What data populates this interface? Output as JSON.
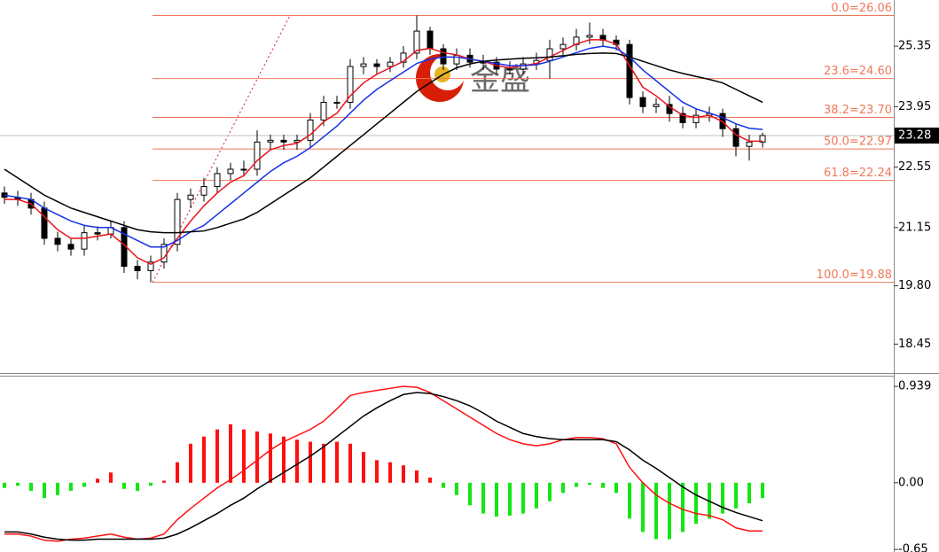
{
  "watermark": "金盛",
  "chart_data": [
    {
      "type": "candlestick",
      "open": [
        21.95,
        21.85,
        21.8,
        21.6,
        20.9,
        20.76,
        20.65,
        21.03,
        21.0,
        21.15,
        20.25,
        20.15,
        20.35,
        20.76,
        21.8,
        21.9,
        22.1,
        22.4,
        22.5,
        22.5,
        23.13,
        23.17,
        23.13,
        23.17,
        23.64,
        24.05,
        24.05,
        24.88,
        24.94,
        24.88,
        24.98,
        25.19,
        25.7,
        25.29,
        24.94,
        25.14,
        24.98,
        24.98,
        24.82,
        24.82,
        24.94,
        25.02,
        25.29,
        25.39,
        25.56,
        25.6,
        25.49,
        25.39,
        24.16,
        23.95,
        24.0,
        23.79,
        23.58,
        23.75,
        23.79,
        23.44,
        23.03,
        23.13
      ],
      "high": [
        22.1,
        22.0,
        21.95,
        21.75,
        21.05,
        20.9,
        21.2,
        21.18,
        21.3,
        21.3,
        20.4,
        20.5,
        20.9,
        21.95,
        22.05,
        22.3,
        22.55,
        22.65,
        22.7,
        23.4,
        23.3,
        23.3,
        23.3,
        23.8,
        24.2,
        24.2,
        25.05,
        25.1,
        25.05,
        25.1,
        25.35,
        26.06,
        25.8,
        25.4,
        25.3,
        25.3,
        25.15,
        25.1,
        25.0,
        25.1,
        25.2,
        25.5,
        25.55,
        25.75,
        25.9,
        25.75,
        25.6,
        25.5,
        24.3,
        24.15,
        24.2,
        23.95,
        23.9,
        23.95,
        23.9,
        23.55,
        23.3,
        23.35
      ],
      "low": [
        21.7,
        21.65,
        21.45,
        20.75,
        20.6,
        20.5,
        20.5,
        20.85,
        20.9,
        20.1,
        19.95,
        19.88,
        20.2,
        20.6,
        21.6,
        21.75,
        21.95,
        22.25,
        22.35,
        22.35,
        22.95,
        22.95,
        22.95,
        23.0,
        23.5,
        23.9,
        23.9,
        24.7,
        24.7,
        24.75,
        24.85,
        25.05,
        25.15,
        24.8,
        24.8,
        24.85,
        24.8,
        24.7,
        24.7,
        24.7,
        24.8,
        24.6,
        25.15,
        25.25,
        25.4,
        25.35,
        25.25,
        24.0,
        23.8,
        23.8,
        23.6,
        23.45,
        23.45,
        23.6,
        23.25,
        22.8,
        22.7,
        23.0
      ],
      "close": [
        21.85,
        21.8,
        21.6,
        20.9,
        20.76,
        20.65,
        21.03,
        21.0,
        21.15,
        20.25,
        20.15,
        20.35,
        20.76,
        21.8,
        21.9,
        22.1,
        22.4,
        22.5,
        22.5,
        23.13,
        23.17,
        23.13,
        23.17,
        23.64,
        24.05,
        24.05,
        24.88,
        24.94,
        24.88,
        24.98,
        25.19,
        25.7,
        25.29,
        24.94,
        25.14,
        24.98,
        24.98,
        24.82,
        24.82,
        24.94,
        25.02,
        25.29,
        25.39,
        25.56,
        25.6,
        25.49,
        25.39,
        24.16,
        23.95,
        24.0,
        23.79,
        23.58,
        23.75,
        23.79,
        23.44,
        23.03,
        23.13,
        23.28
      ],
      "moving_averages": [
        {
          "color": "#e8141e",
          "values": [
            21.8,
            21.8,
            21.7,
            21.4,
            21.1,
            20.9,
            20.9,
            20.95,
            21.0,
            20.75,
            20.45,
            20.3,
            20.45,
            20.9,
            21.3,
            21.65,
            21.95,
            22.2,
            22.35,
            22.7,
            22.95,
            23.05,
            23.1,
            23.3,
            23.6,
            23.8,
            24.2,
            24.5,
            24.7,
            24.85,
            25.0,
            25.25,
            25.3,
            25.2,
            25.15,
            25.05,
            25.0,
            24.9,
            24.85,
            24.9,
            24.95,
            25.1,
            25.25,
            25.4,
            25.5,
            25.5,
            25.4,
            24.9,
            24.4,
            24.2,
            23.95,
            23.75,
            23.7,
            23.75,
            23.6,
            23.3,
            23.15,
            23.15
          ]
        },
        {
          "color": "#1432e6",
          "values": [
            21.9,
            21.85,
            21.8,
            21.6,
            21.45,
            21.3,
            21.2,
            21.15,
            21.15,
            21.0,
            20.85,
            20.7,
            20.7,
            20.85,
            21.05,
            21.2,
            21.45,
            21.7,
            21.95,
            22.2,
            22.45,
            22.65,
            22.8,
            23.0,
            23.25,
            23.5,
            23.8,
            24.1,
            24.35,
            24.55,
            24.75,
            24.95,
            25.05,
            25.1,
            25.1,
            25.05,
            25.0,
            24.95,
            24.9,
            24.9,
            24.92,
            25.0,
            25.1,
            25.2,
            25.3,
            25.35,
            25.3,
            25.1,
            24.8,
            24.55,
            24.3,
            24.05,
            23.9,
            23.8,
            23.7,
            23.55,
            23.45,
            23.42
          ]
        },
        {
          "color": "#000000",
          "values": [
            22.5,
            22.3,
            22.1,
            21.9,
            21.75,
            21.6,
            21.5,
            21.4,
            21.3,
            21.2,
            21.1,
            21.05,
            21.03,
            21.03,
            21.05,
            21.07,
            21.15,
            21.25,
            21.35,
            21.5,
            21.7,
            21.9,
            22.1,
            22.3,
            22.55,
            22.8,
            23.05,
            23.3,
            23.55,
            23.8,
            24.05,
            24.3,
            24.5,
            24.7,
            24.85,
            24.94,
            25.0,
            25.03,
            25.05,
            25.07,
            25.08,
            25.1,
            25.13,
            25.16,
            25.18,
            25.19,
            25.18,
            25.1,
            25.0,
            24.9,
            24.8,
            24.72,
            24.65,
            24.58,
            24.5,
            24.35,
            24.2,
            24.05
          ]
        }
      ],
      "fib_levels": [
        {
          "value": 26.06,
          "label": "0.0=26.06"
        },
        {
          "value": 24.6,
          "label": "23.6=24.60"
        },
        {
          "value": 23.7,
          "label": "38.2=23.70"
        },
        {
          "value": 22.97,
          "label": "50.0=22.97"
        },
        {
          "value": 22.24,
          "label": "61.8=22.24"
        },
        {
          "value": 19.88,
          "label": "100.0=19.88"
        }
      ],
      "fib_color": "#f0785a",
      "last_price": 23.28,
      "ylim": [
        17.78,
        26.42
      ],
      "yticks": [
        25.35,
        23.95,
        22.55,
        21.15,
        {
          "value": 19.8,
          "label": "19.80"
        },
        18.45
      ]
    },
    {
      "type": "macd",
      "histogram": [
        -0.05,
        -0.03,
        -0.08,
        -0.15,
        -0.12,
        -0.08,
        -0.04,
        0.04,
        0.1,
        -0.06,
        -0.08,
        -0.03,
        0.02,
        0.2,
        0.38,
        0.45,
        0.52,
        0.57,
        0.52,
        0.5,
        0.48,
        0.45,
        0.42,
        0.4,
        0.38,
        0.4,
        0.38,
        0.3,
        0.22,
        0.2,
        0.17,
        0.12,
        0.05,
        -0.05,
        -0.12,
        -0.22,
        -0.3,
        -0.33,
        -0.32,
        -0.3,
        -0.25,
        -0.18,
        -0.1,
        -0.04,
        -0.02,
        -0.05,
        -0.1,
        -0.35,
        -0.48,
        -0.55,
        -0.55,
        -0.48,
        -0.4,
        -0.35,
        -0.3,
        -0.25,
        -0.2,
        -0.15
      ],
      "up_color": "#ff1010",
      "down_color": "#14e614",
      "lines": [
        {
          "color": "#ff1010",
          "values": [
            -0.5,
            -0.5,
            -0.52,
            -0.56,
            -0.57,
            -0.55,
            -0.54,
            -0.52,
            -0.5,
            -0.53,
            -0.55,
            -0.54,
            -0.5,
            -0.36,
            -0.25,
            -0.15,
            -0.05,
            0.03,
            0.12,
            0.22,
            0.32,
            0.4,
            0.46,
            0.52,
            0.6,
            0.72,
            0.85,
            0.88,
            0.9,
            0.92,
            0.94,
            0.93,
            0.88,
            0.8,
            0.72,
            0.64,
            0.56,
            0.48,
            0.42,
            0.38,
            0.36,
            0.38,
            0.42,
            0.44,
            0.44,
            0.43,
            0.38,
            0.15,
            0.0,
            -0.12,
            -0.2,
            -0.26,
            -0.3,
            -0.32,
            -0.36,
            -0.44,
            -0.47,
            -0.47
          ]
        },
        {
          "color": "#000000",
          "values": [
            -0.48,
            -0.48,
            -0.5,
            -0.53,
            -0.55,
            -0.56,
            -0.56,
            -0.55,
            -0.55,
            -0.55,
            -0.55,
            -0.55,
            -0.54,
            -0.5,
            -0.44,
            -0.37,
            -0.3,
            -0.22,
            -0.15,
            -0.06,
            0.02,
            0.1,
            0.18,
            0.26,
            0.35,
            0.45,
            0.55,
            0.65,
            0.73,
            0.8,
            0.86,
            0.88,
            0.87,
            0.84,
            0.8,
            0.75,
            0.68,
            0.6,
            0.54,
            0.48,
            0.45,
            0.43,
            0.42,
            0.42,
            0.42,
            0.42,
            0.4,
            0.32,
            0.22,
            0.14,
            0.05,
            -0.04,
            -0.12,
            -0.18,
            -0.24,
            -0.29,
            -0.33,
            -0.37
          ]
        }
      ],
      "ylim": [
        -0.675,
        1.035
      ],
      "yticks": [
        0.939,
        {
          "value": 0,
          "label": "0.00"
        },
        -0.65
      ]
    }
  ]
}
